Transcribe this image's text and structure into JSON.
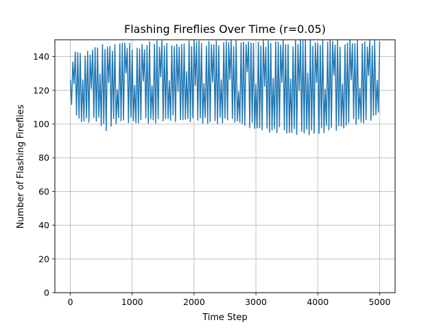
{
  "chart_data": {
    "type": "line",
    "title": "Flashing Fireflies Over Time (r=0.05)",
    "xlabel": "Time Step",
    "ylabel": "Number of Flashing Fireflies",
    "xlim": [
      -250,
      5250
    ],
    "ylim": [
      0,
      150
    ],
    "xticks": [
      0,
      1000,
      2000,
      3000,
      4000,
      5000
    ],
    "yticks": [
      0,
      20,
      40,
      60,
      80,
      100,
      120,
      140
    ],
    "grid": true,
    "series": [
      {
        "color": "#1f77b4",
        "x_start": 0,
        "x_end": 5000,
        "oscillation_period_steps": 40,
        "baseline": 125,
        "upper_envelope": [
          [
            0,
            128
          ],
          [
            50,
            142
          ],
          [
            100,
            144
          ],
          [
            200,
            146
          ],
          [
            300,
            143
          ],
          [
            400,
            146
          ],
          [
            500,
            147
          ],
          [
            600,
            148
          ],
          [
            700,
            147
          ],
          [
            800,
            148
          ],
          [
            1000,
            148
          ],
          [
            1200,
            147
          ],
          [
            1300,
            150
          ],
          [
            1500,
            150
          ],
          [
            1700,
            148
          ],
          [
            1800,
            149
          ],
          [
            2000,
            150
          ],
          [
            2200,
            150
          ],
          [
            2500,
            150
          ],
          [
            2700,
            150
          ],
          [
            3000,
            150
          ],
          [
            3300,
            150
          ],
          [
            3600,
            150
          ],
          [
            3800,
            150
          ],
          [
            4000,
            150
          ],
          [
            4300,
            150
          ],
          [
            4500,
            150
          ],
          [
            4700,
            150
          ],
          [
            4900,
            150
          ],
          [
            5000,
            150
          ]
        ],
        "lower_envelope": [
          [
            0,
            108
          ],
          [
            50,
            106
          ],
          [
            100,
            103
          ],
          [
            200,
            100
          ],
          [
            300,
            101
          ],
          [
            400,
            101
          ],
          [
            500,
            99
          ],
          [
            600,
            95
          ],
          [
            700,
            100
          ],
          [
            800,
            100
          ],
          [
            1000,
            101
          ],
          [
            1200,
            99
          ],
          [
            1300,
            100
          ],
          [
            1500,
            101
          ],
          [
            1700,
            101
          ],
          [
            1800,
            102
          ],
          [
            2000,
            100
          ],
          [
            2200,
            100
          ],
          [
            2500,
            100
          ],
          [
            2700,
            100
          ],
          [
            3000,
            96
          ],
          [
            3300,
            94
          ],
          [
            3600,
            94
          ],
          [
            3800,
            93
          ],
          [
            4000,
            94
          ],
          [
            4300,
            96
          ],
          [
            4500,
            98
          ],
          [
            4700,
            100
          ],
          [
            4900,
            102
          ],
          [
            5000,
            106
          ]
        ]
      }
    ]
  }
}
